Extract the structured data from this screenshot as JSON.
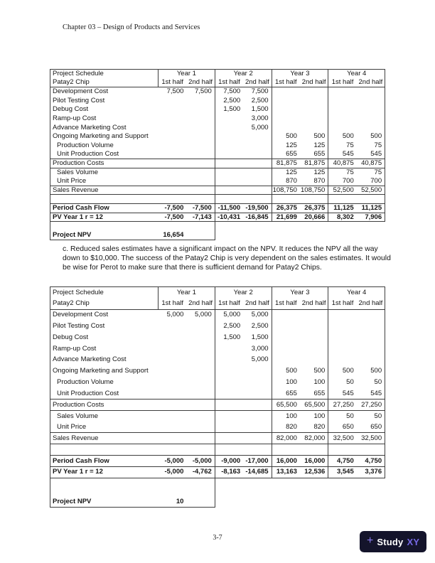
{
  "page": {
    "header": "Chapter 03 – Design of Products and Services",
    "footer_page_number": "3-7"
  },
  "paragraph": "c. Reduced sales estimates have a significant impact on the NPV. It reduces the NPV all the way down to $10,000.  The success of the Patay2 Chip is very dependent on the sales estimates.  It would be wise for Perot to make sure that there is sufficient demand for Patay2 Chips.",
  "logo": {
    "plus_glyph": "+",
    "study_text": "Study",
    "xy_text": "XY",
    "bg_color": "#14142b",
    "plus_color": "#8a7cf0",
    "study_color": "#ffffff",
    "xy_color": "#7568e4"
  },
  "tables": [
    {
      "title": "Project Schedule",
      "subtitle": "Patay2 Chip",
      "year_headers": [
        "Year 1",
        "Year 2",
        "Year 3",
        "Year 4"
      ],
      "half_headers": [
        "1st half",
        "2nd half"
      ],
      "rows": [
        {
          "label": "Development Cost",
          "values": [
            "7,500",
            "7,500",
            "7,500",
            "7,500",
            "",
            "",
            "",
            ""
          ]
        },
        {
          "label": "Pilot Testing Cost",
          "values": [
            "",
            "",
            "2,500",
            "2,500",
            "",
            "",
            "",
            ""
          ]
        },
        {
          "label": "Debug Cost",
          "values": [
            "",
            "",
            "1,500",
            "1,500",
            "",
            "",
            "",
            ""
          ]
        },
        {
          "label": "Ramp-up Cost",
          "values": [
            "",
            "",
            "",
            "3,000",
            "",
            "",
            "",
            ""
          ]
        },
        {
          "label": "Advance Marketing Cost",
          "values": [
            "",
            "",
            "",
            "5,000",
            "",
            "",
            "",
            ""
          ]
        },
        {
          "label": "Ongoing Marketing and Support",
          "values": [
            "",
            "",
            "",
            "",
            "500",
            "500",
            "500",
            "500"
          ]
        },
        {
          "label": "Production Volume",
          "indent": true,
          "values": [
            "",
            "",
            "",
            "",
            "125",
            "125",
            "75",
            "75"
          ]
        },
        {
          "label": "Unit Production Cost",
          "indent": true,
          "values": [
            "",
            "",
            "",
            "",
            "655",
            "655",
            "545",
            "545"
          ]
        },
        {
          "label": "Production Costs",
          "rule_above": true,
          "rule_below": true,
          "values": [
            "",
            "",
            "",
            "",
            "81,875",
            "81,875",
            "40,875",
            "40,875"
          ]
        },
        {
          "label": "Sales Volume",
          "indent": true,
          "values": [
            "",
            "",
            "",
            "",
            "125",
            "125",
            "75",
            "75"
          ]
        },
        {
          "label": "Unit Price",
          "indent": true,
          "values": [
            "",
            "",
            "",
            "",
            "870",
            "870",
            "700",
            "700"
          ]
        },
        {
          "label": "Sales Revenue",
          "rule_above": true,
          "rule_below": true,
          "values": [
            "",
            "",
            "",
            "",
            "108,750",
            "108,750",
            "52,500",
            "52,500"
          ]
        },
        {
          "type": "blank",
          "label": "",
          "values": [
            "",
            "",
            "",
            "",
            "",
            "",
            "",
            ""
          ]
        },
        {
          "label": "Period Cash Flow",
          "bold": true,
          "rule_above": true,
          "rule_below": true,
          "values": [
            "-7,500",
            "-7,500",
            "-11,500",
            "-19,500",
            "26,375",
            "26,375",
            "11,125",
            "11,125"
          ]
        },
        {
          "label": "PV Year 1 r = 12",
          "bold": true,
          "rule_below": true,
          "values": [
            "-7,500",
            "-7,143",
            "-10,431",
            "-16,845",
            "21,699",
            "20,666",
            "8,302",
            "7,906"
          ]
        },
        {
          "type": "gap"
        },
        {
          "label": "Project NPV",
          "bold": true,
          "npv": "16,654"
        }
      ]
    },
    {
      "title": "Project Schedule",
      "subtitle": "Patay2 Chip",
      "year_headers": [
        "Year 1",
        "Year 2",
        "Year 3",
        "Year 4"
      ],
      "half_headers": [
        "1st half",
        "2nd half"
      ],
      "rows": [
        {
          "label": "Development Cost",
          "values": [
            "5,000",
            "5,000",
            "5,000",
            "5,000",
            "",
            "",
            "",
            ""
          ]
        },
        {
          "label": "Pilot Testing Cost",
          "values": [
            "",
            "",
            "2,500",
            "2,500",
            "",
            "",
            "",
            ""
          ]
        },
        {
          "label": "Debug Cost",
          "values": [
            "",
            "",
            "1,500",
            "1,500",
            "",
            "",
            "",
            ""
          ]
        },
        {
          "label": "Ramp-up Cost",
          "values": [
            "",
            "",
            "",
            "3,000",
            "",
            "",
            "",
            ""
          ]
        },
        {
          "label": "Advance Marketing Cost",
          "values": [
            "",
            "",
            "",
            "5,000",
            "",
            "",
            "",
            ""
          ]
        },
        {
          "label": "Ongoing Marketing and Support",
          "values": [
            "",
            "",
            "",
            "",
            "500",
            "500",
            "500",
            "500"
          ]
        },
        {
          "label": "Production Volume",
          "indent": true,
          "values": [
            "",
            "",
            "",
            "",
            "100",
            "100",
            "50",
            "50"
          ]
        },
        {
          "label": "Unit Production Cost",
          "indent": true,
          "values": [
            "",
            "",
            "",
            "",
            "655",
            "655",
            "545",
            "545"
          ]
        },
        {
          "label": "Production Costs",
          "rule_above": true,
          "rule_below": true,
          "values": [
            "",
            "",
            "",
            "",
            "65,500",
            "65,500",
            "27,250",
            "27,250"
          ]
        },
        {
          "label": "Sales Volume",
          "indent": true,
          "values": [
            "",
            "",
            "",
            "",
            "100",
            "100",
            "50",
            "50"
          ]
        },
        {
          "label": "Unit Price",
          "indent": true,
          "values": [
            "",
            "",
            "",
            "",
            "820",
            "820",
            "650",
            "650"
          ]
        },
        {
          "label": "Sales Revenue",
          "rule_above": true,
          "rule_below": true,
          "values": [
            "",
            "",
            "",
            "",
            "82,000",
            "82,000",
            "32,500",
            "32,500"
          ]
        },
        {
          "type": "blank",
          "label": "",
          "values": [
            "",
            "",
            "",
            "",
            "",
            "",
            "",
            ""
          ]
        },
        {
          "label": "Period Cash Flow",
          "bold": true,
          "rule_above": true,
          "rule_below": true,
          "values": [
            "-5,000",
            "-5,000",
            "-9,000",
            "-17,000",
            "16,000",
            "16,000",
            "4,750",
            "4,750"
          ]
        },
        {
          "label": "PV Year 1 r = 12",
          "bold": true,
          "rule_below": true,
          "values": [
            "-5,000",
            "-4,762",
            "-8,163",
            "-14,685",
            "13,163",
            "12,536",
            "3,545",
            "3,376"
          ]
        },
        {
          "type": "gap"
        },
        {
          "label": "Project NPV",
          "bold": true,
          "npv": "10"
        }
      ]
    }
  ]
}
